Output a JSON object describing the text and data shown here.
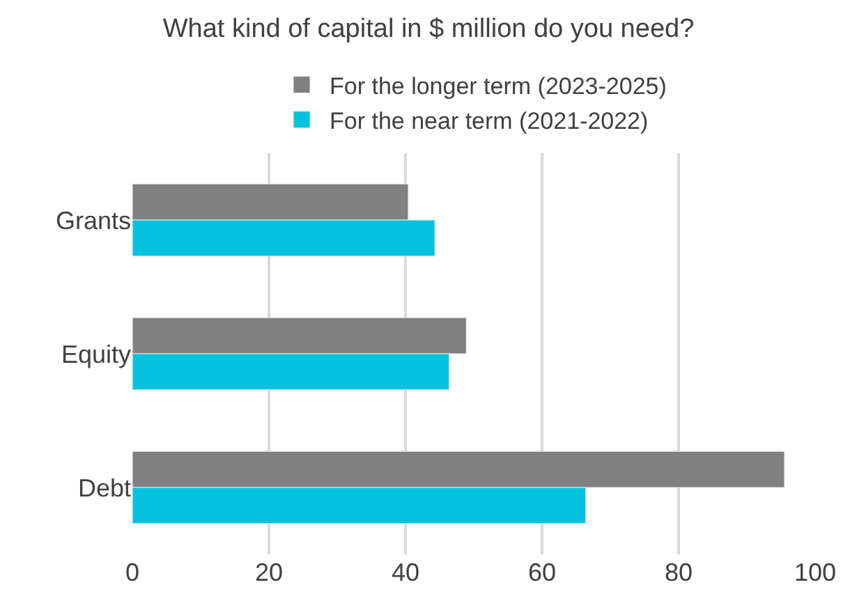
{
  "chart_data": {
    "type": "bar",
    "orientation": "horizontal",
    "title": "What kind of capital in $ million do you need?",
    "categories": [
      "Grants",
      "Equity",
      "Debt"
    ],
    "series": [
      {
        "name": "For the longer term (2023-2025)",
        "color": "#808080",
        "values": [
          40.4,
          48.9,
          95.5
        ]
      },
      {
        "name": "For the near term (2021-2022)",
        "color": "#05c3de",
        "values": [
          44.3,
          46.4,
          66.4
        ]
      }
    ],
    "xlim": [
      0,
      100
    ],
    "xticks": [
      0,
      20,
      40,
      60,
      80,
      100
    ],
    "grid": "x",
    "legend": "top"
  }
}
